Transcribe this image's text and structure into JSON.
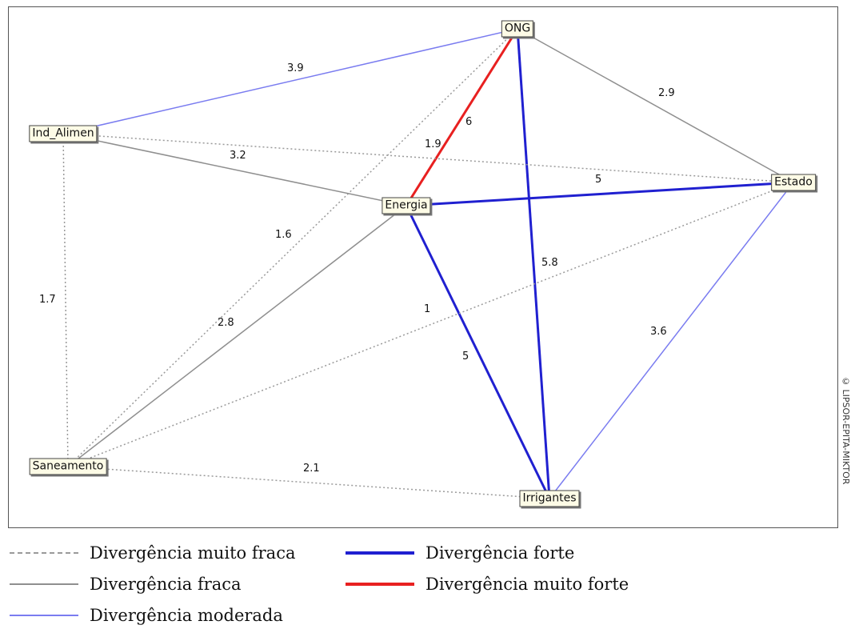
{
  "nodes": [
    {
      "id": "ong",
      "label": "ONG"
    },
    {
      "id": "ind",
      "label": "Ind_Alimen"
    },
    {
      "id": "estado",
      "label": "Estado"
    },
    {
      "id": "energia",
      "label": "Energia"
    },
    {
      "id": "saneamento",
      "label": "Saneamento"
    },
    {
      "id": "irrigantes",
      "label": "Irrigantes"
    }
  ],
  "edges": [
    {
      "from": "ind",
      "to": "ong",
      "label": "3.9",
      "type": "moderada"
    },
    {
      "from": "ong",
      "to": "estado",
      "label": "2.9",
      "type": "fraca"
    },
    {
      "from": "ong",
      "to": "energia",
      "label": "6",
      "type": "muito_forte"
    },
    {
      "from": "ong",
      "to": "irrigantes",
      "label": "5.8",
      "type": "forte"
    },
    {
      "from": "ong",
      "to": "saneamento",
      "label": "1.6",
      "type": "muito_fraca"
    },
    {
      "from": "ind",
      "to": "estado",
      "label": "1.9",
      "type": "muito_fraca"
    },
    {
      "from": "ind",
      "to": "energia",
      "label": "3.2",
      "type": "fraca"
    },
    {
      "from": "ind",
      "to": "saneamento",
      "label": "1.7",
      "type": "muito_fraca"
    },
    {
      "from": "energia",
      "to": "estado",
      "label": "5",
      "type": "forte"
    },
    {
      "from": "energia",
      "to": "saneamento",
      "label": "2.8",
      "type": "fraca"
    },
    {
      "from": "energia",
      "to": "irrigantes",
      "label": "5",
      "type": "forte"
    },
    {
      "from": "saneamento",
      "to": "estado",
      "label": "1",
      "type": "muito_fraca"
    },
    {
      "from": "estado",
      "to": "irrigantes",
      "label": "3.6",
      "type": "moderada"
    },
    {
      "from": "saneamento",
      "to": "irrigantes",
      "label": "2.1",
      "type": "muito_fraca"
    }
  ],
  "edge_styles": {
    "muito_fraca": {
      "color": "#9a9a9a",
      "dashed": true,
      "label": "Divergência muito fraca"
    },
    "fraca": {
      "color": "#8f8f8f",
      "dashed": false,
      "label": "Divergência fraca"
    },
    "moderada": {
      "color": "#7a7cf0",
      "dashed": false,
      "label": "Divergência moderada"
    },
    "forte": {
      "color": "#2020d0",
      "dashed": false,
      "label": "Divergência forte"
    },
    "muito_forte": {
      "color": "#e82020",
      "dashed": false,
      "label": "Divergência muito forte"
    }
  },
  "legend": {
    "muito_fraca": "Divergência muito fraca",
    "fraca": "Divergência fraca",
    "moderada": "Divergência moderada",
    "forte": "Divergência forte",
    "muito_forte": "Divergência muito forte"
  },
  "watermark": "© LIPSOR-EPITA-MIKTOR"
}
